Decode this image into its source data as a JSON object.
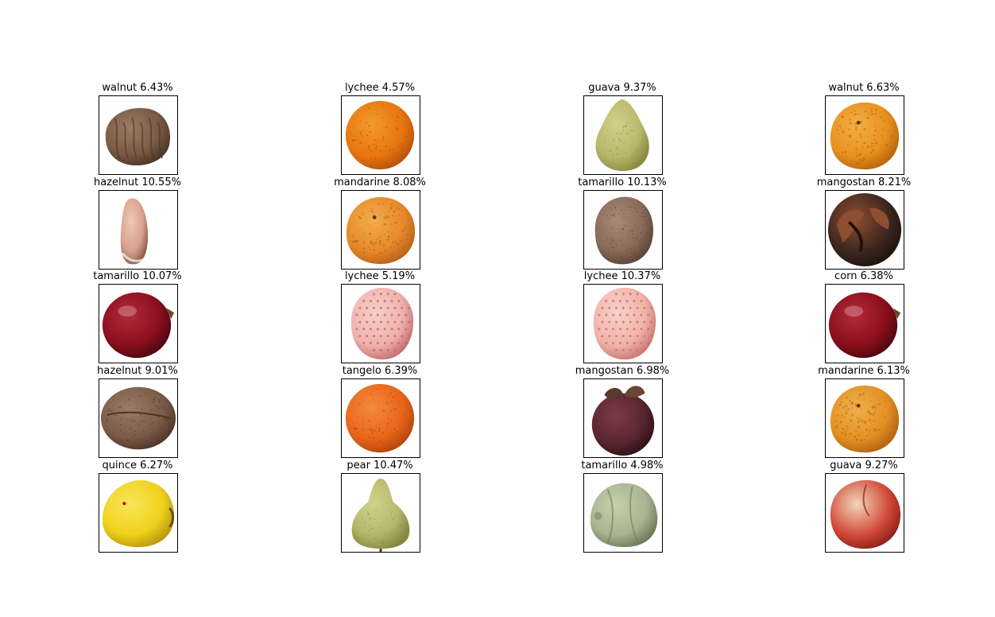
{
  "figure": {
    "panels": [
      {
        "label": "walnut 6.43%",
        "depiction": "walnut",
        "colors": {
          "base": "#7a5a45",
          "mid": "#9b7b64",
          "dark": "#4a3427"
        }
      },
      {
        "label": "lychee 4.57%",
        "depiction": "orange",
        "colors": {
          "base": "#e8750e",
          "mid": "#f39a2e",
          "dark": "#b5520a"
        }
      },
      {
        "label": "guava 9.37%",
        "depiction": "guava",
        "colors": {
          "base": "#b9b86a",
          "mid": "#d3d08a",
          "dark": "#8b8a45"
        }
      },
      {
        "label": "walnut 6.63%",
        "depiction": "mandarine",
        "colors": {
          "base": "#e8901e",
          "mid": "#f2b043",
          "dark": "#b8650d"
        }
      },
      {
        "label": "hazelnut 10.55%",
        "depiction": "almond",
        "colors": {
          "base": "#d6a08c",
          "mid": "#efc8b6",
          "dark": "#8f5a4a"
        }
      },
      {
        "label": "mandarine 8.08%",
        "depiction": "mandarine",
        "colors": {
          "base": "#e7892a",
          "mid": "#f2ac4c",
          "dark": "#b8621a"
        }
      },
      {
        "label": "tamarillo 10.13%",
        "depiction": "coconut",
        "colors": {
          "base": "#8a6a58",
          "mid": "#a98a78",
          "dark": "#5a4234"
        }
      },
      {
        "label": "mangostan 8.21%",
        "depiction": "mangosteen-open",
        "colors": {
          "base": "#3e2620",
          "mid": "#8e4e30",
          "dark": "#1e120e"
        }
      },
      {
        "label": "tamarillo 10.07%",
        "depiction": "tamarillo",
        "colors": {
          "base": "#8b0f1f",
          "mid": "#b22a3a",
          "dark": "#4c0610"
        }
      },
      {
        "label": "lychee 5.19%",
        "depiction": "lychee",
        "colors": {
          "base": "#efb2ad",
          "mid": "#f8cfcb",
          "dark": "#c46d70"
        }
      },
      {
        "label": "lychee 10.37%",
        "depiction": "lychee",
        "colors": {
          "base": "#f0b3aa",
          "mid": "#f9d2cb",
          "dark": "#c9756f"
        }
      },
      {
        "label": "corn 6.38%",
        "depiction": "tamarillo",
        "colors": {
          "base": "#8a0f1c",
          "mid": "#b42a38",
          "dark": "#4b0610"
        }
      },
      {
        "label": "hazelnut 9.01%",
        "depiction": "coconut-flat",
        "colors": {
          "base": "#7b5a48",
          "mid": "#9c7b66",
          "dark": "#4d3528"
        }
      },
      {
        "label": "tangelo 6.39%",
        "depiction": "orange",
        "colors": {
          "base": "#e9651a",
          "mid": "#f38b3a",
          "dark": "#b2450c"
        }
      },
      {
        "label": "mangostan 6.98%",
        "depiction": "mangosteen",
        "colors": {
          "base": "#5a2630",
          "mid": "#7d3a45",
          "dark": "#2d1015"
        }
      },
      {
        "label": "mandarine 6.13%",
        "depiction": "mandarine",
        "colors": {
          "base": "#e49024",
          "mid": "#efb04b",
          "dark": "#b06212"
        }
      },
      {
        "label": "quince 6.27%",
        "depiction": "quince",
        "colors": {
          "base": "#f0d21c",
          "mid": "#f8e65a",
          "dark": "#b8980c"
        }
      },
      {
        "label": "pear 10.47%",
        "depiction": "pear",
        "colors": {
          "base": "#b5b86a",
          "mid": "#d0d28d",
          "dark": "#86893f"
        }
      },
      {
        "label": "tamarillo 4.98%",
        "depiction": "chayote",
        "colors": {
          "base": "#a8b590",
          "mid": "#c5d0ad",
          "dark": "#6f7a5c"
        }
      },
      {
        "label": "guava 9.27%",
        "depiction": "nectarine",
        "colors": {
          "base": "#d24a3a",
          "mid": "#f0d7b8",
          "dark": "#8e1f18"
        }
      }
    ]
  }
}
